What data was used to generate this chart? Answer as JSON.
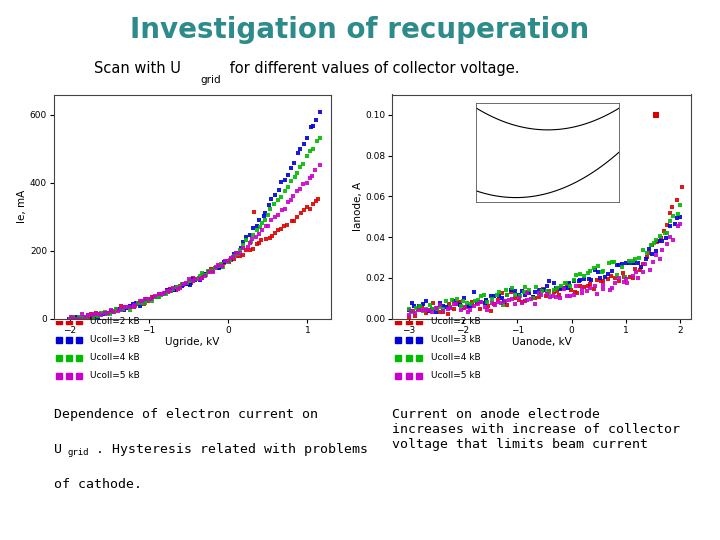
{
  "title": "Investigation of recuperation",
  "title_color": "#2e8b8b",
  "subtitle_pre": "Scan with U",
  "subtitle_sub": "grid",
  "subtitle_post": " for different values of collector voltage.",
  "subtitle_color": "#000000",
  "left_plot": {
    "xlabel": "Ugride, kV",
    "ylabel": "Ie, mA",
    "xlim": [
      -2.2,
      1.3
    ],
    "ylim": [
      0,
      660
    ],
    "yticks": [
      0,
      200,
      400,
      600
    ],
    "xticks": [
      -2,
      -1,
      0,
      1
    ],
    "legend": [
      {
        "label": "Ucoll=2 kB",
        "color": "#dd0000"
      },
      {
        "label": "Ucoll=3 kB",
        "color": "#0000dd"
      },
      {
        "label": "Ucoll=4 kB",
        "color": "#00bb00"
      },
      {
        "label": "Ucoll=5 kB",
        "color": "#cc00cc"
      }
    ]
  },
  "right_plot": {
    "xlabel": "Uanode, kV",
    "ylabel": "Ianode, A",
    "xlim": [
      -3.3,
      2.2
    ],
    "ylim": [
      0,
      0.11
    ],
    "yticks": [
      0,
      0.02,
      0.04,
      0.06,
      0.08,
      0.1
    ],
    "xticks": [
      -3,
      -2,
      -1,
      0,
      1,
      2
    ],
    "legend": [
      {
        "label": "Ucoll=2 kB",
        "color": "#dd0000"
      },
      {
        "label": "Ucoll=3 kB",
        "color": "#0000dd"
      },
      {
        "label": "Ucoll=4 kB",
        "color": "#00bb00"
      },
      {
        "label": "Ucoll=5 kB",
        "color": "#cc00cc"
      }
    ]
  },
  "text_left_line1": "Dependence of electron current on",
  "text_left_line2_pre": "U",
  "text_left_line2_sub": "grid",
  "text_left_line2_post": ". Hysteresis related with problems",
  "text_left_line3": "of cathode.",
  "text_right": "Current on anode electrode\nincreases with increase of collector\nvoltage that limits beam current",
  "bg_color": "#ffffff"
}
